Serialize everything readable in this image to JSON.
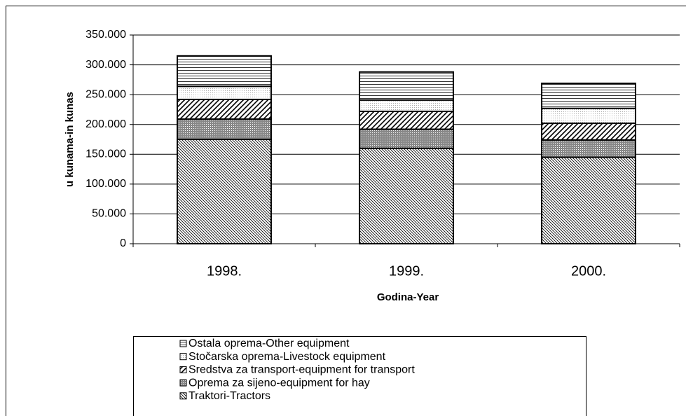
{
  "chart_data": {
    "type": "stacked-bar",
    "y_label": "u kunama-in kunas",
    "x_label": "Godina-Year",
    "categories": [
      "1998.",
      "1999.",
      "2000."
    ],
    "series": [
      {
        "name": "Traktori-Tractors",
        "color": "#000000",
        "pattern": "diagonal-down",
        "values": [
          175000,
          160000,
          145000
        ]
      },
      {
        "name": "Oprema za sijeno-equipment for hay",
        "color": "#000000",
        "pattern": "dense-dots",
        "values": [
          34000,
          32000,
          29000
        ]
      },
      {
        "name": "Sredstva za transport-equipment for transport",
        "color": "#000000",
        "pattern": "diagonal-up",
        "values": [
          33000,
          30000,
          28000
        ]
      },
      {
        "name": "Stočarska oprema-Livestock equipment",
        "color": "#000000",
        "pattern": "fine-dots",
        "values": [
          22000,
          19000,
          25000
        ]
      },
      {
        "name": "Ostala oprema-Other equipment",
        "color": "#000000",
        "pattern": "horizontal",
        "values": [
          51000,
          47000,
          42000
        ]
      }
    ],
    "ylim": [
      0,
      350000
    ],
    "yticks": [
      0,
      {
        "value": 50000,
        "label": "50.000"
      },
      {
        "value": 100000,
        "label": "100.000"
      },
      {
        "value": 150000,
        "label": "150.000"
      },
      {
        "value": 200000,
        "label": "200.000"
      },
      {
        "value": 250000,
        "label": "250.000"
      },
      {
        "value": 300000,
        "label": "300.000"
      },
      {
        "value": 350000,
        "label": "350.000"
      }
    ],
    "grid": true,
    "legend": "bottom"
  }
}
